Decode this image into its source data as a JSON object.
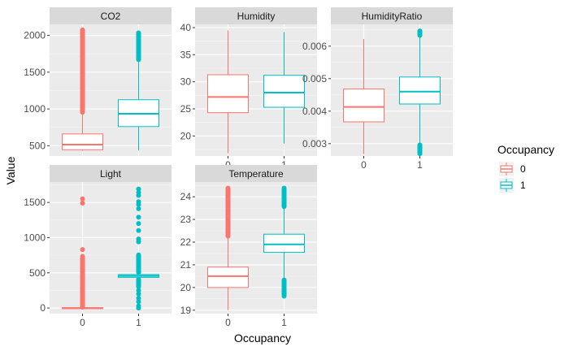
{
  "colors": {
    "panel_bg": "#ebebeb",
    "strip_bg": "#d9d9d9",
    "grid_major": "#ffffff",
    "group0": "#F8766D",
    "group1": "#00BFC4"
  },
  "chart_data": {
    "type": "boxplot-facet",
    "xlabel": "Occupancy",
    "ylabel": "Value",
    "categories": [
      "0",
      "1"
    ],
    "legend": {
      "title": "Occupancy",
      "entries": [
        "0",
        "1"
      ],
      "position": "right"
    },
    "grid": true,
    "panels": [
      {
        "name": "CO2",
        "ylim": [
          360,
          2150
        ],
        "yticks": [
          500,
          1000,
          1500,
          2000
        ],
        "tick_labels": [
          "500",
          "1000",
          "1500",
          "2000"
        ],
        "boxes": [
          {
            "group": "0",
            "whisker_low": 430,
            "q1": 445,
            "median": 515,
            "q3": 660,
            "whisker_high": 950,
            "outliers_range": [
              950,
              2080
            ],
            "outlier_points": []
          },
          {
            "group": "1",
            "whisker_low": 435,
            "q1": 760,
            "median": 935,
            "q3": 1125,
            "whisker_high": 1665,
            "outliers_range": [
              1665,
              2040
            ],
            "outlier_points": []
          }
        ]
      },
      {
        "name": "Humidity",
        "ylim": [
          16.3,
          40.6
        ],
        "yticks": [
          20,
          25,
          30,
          35,
          40
        ],
        "tick_labels": [
          "20",
          "25",
          "30",
          "35",
          "40"
        ],
        "boxes": [
          {
            "group": "0",
            "whisker_low": 16.8,
            "q1": 24.3,
            "median": 27.2,
            "q3": 31.3,
            "whisker_high": 39.5,
            "outliers_range": null,
            "outlier_points": []
          },
          {
            "group": "1",
            "whisker_low": 18.6,
            "q1": 25.3,
            "median": 28.0,
            "q3": 31.2,
            "whisker_high": 39.2,
            "outliers_range": null,
            "outlier_points": []
          }
        ]
      },
      {
        "name": "HumidityRatio",
        "ylim": [
          0.00262,
          0.00667
        ],
        "yticks": [
          0.003,
          0.004,
          0.005,
          0.006
        ],
        "tick_labels": [
          "0.003",
          "0.004",
          "0.005",
          "0.006"
        ],
        "boxes": [
          {
            "group": "0",
            "whisker_low": 0.00268,
            "q1": 0.00367,
            "median": 0.00413,
            "q3": 0.00468,
            "whisker_high": 0.00622,
            "outliers_range": null,
            "outlier_points": []
          },
          {
            "group": "1",
            "whisker_low": 0.00297,
            "q1": 0.00422,
            "median": 0.0046,
            "q3": 0.00505,
            "whisker_high": 0.00632,
            "outliers_range": [
              0.00632,
              0.00648
            ],
            "outliers_range_low": [
              0.00268,
              0.00297
            ],
            "outlier_points": []
          }
        ]
      },
      {
        "name": "Light",
        "ylim": [
          -80,
          1790
        ],
        "yticks": [
          0,
          500,
          1000,
          1500
        ],
        "tick_labels": [
          "0",
          "500",
          "1000",
          "1500"
        ],
        "boxes": [
          {
            "group": "0",
            "whisker_low": 0,
            "q1": 0,
            "median": 0,
            "q3": 2,
            "whisker_high": 5,
            "outliers_range": [
              5,
              740
            ],
            "outlier_points": [
              830,
              1490,
              1550
            ]
          },
          {
            "group": "1",
            "whisker_low": 410,
            "q1": 435,
            "median": 455,
            "q3": 475,
            "whisker_high": 500,
            "outliers_range": [
              500,
              760
            ],
            "outliers_range_low": [
              300,
              410
            ],
            "outlier_points": [
              0,
              30,
              90,
              140,
              200,
              250,
              940,
              980,
              1100,
              1200,
              1290,
              1410,
              1470,
              1510,
              1600,
              1640,
              1690
            ]
          }
        ]
      },
      {
        "name": "Temperature",
        "ylim": [
          18.85,
          24.65
        ],
        "yticks": [
          19,
          20,
          21,
          22,
          23,
          24
        ],
        "tick_labels": [
          "19",
          "20",
          "21",
          "22",
          "23",
          "24"
        ],
        "boxes": [
          {
            "group": "0",
            "whisker_low": 19.0,
            "q1": 20.0,
            "median": 20.5,
            "q3": 20.9,
            "whisker_high": 22.25,
            "outliers_range": [
              22.25,
              24.4
            ],
            "outlier_points": []
          },
          {
            "group": "1",
            "whisker_low": 20.35,
            "q1": 21.55,
            "median": 21.9,
            "q3": 22.35,
            "whisker_high": 23.55,
            "outliers_range": [
              23.55,
              24.4
            ],
            "outliers_range_low": [
              19.6,
              20.35
            ],
            "outlier_points": []
          }
        ]
      }
    ]
  }
}
